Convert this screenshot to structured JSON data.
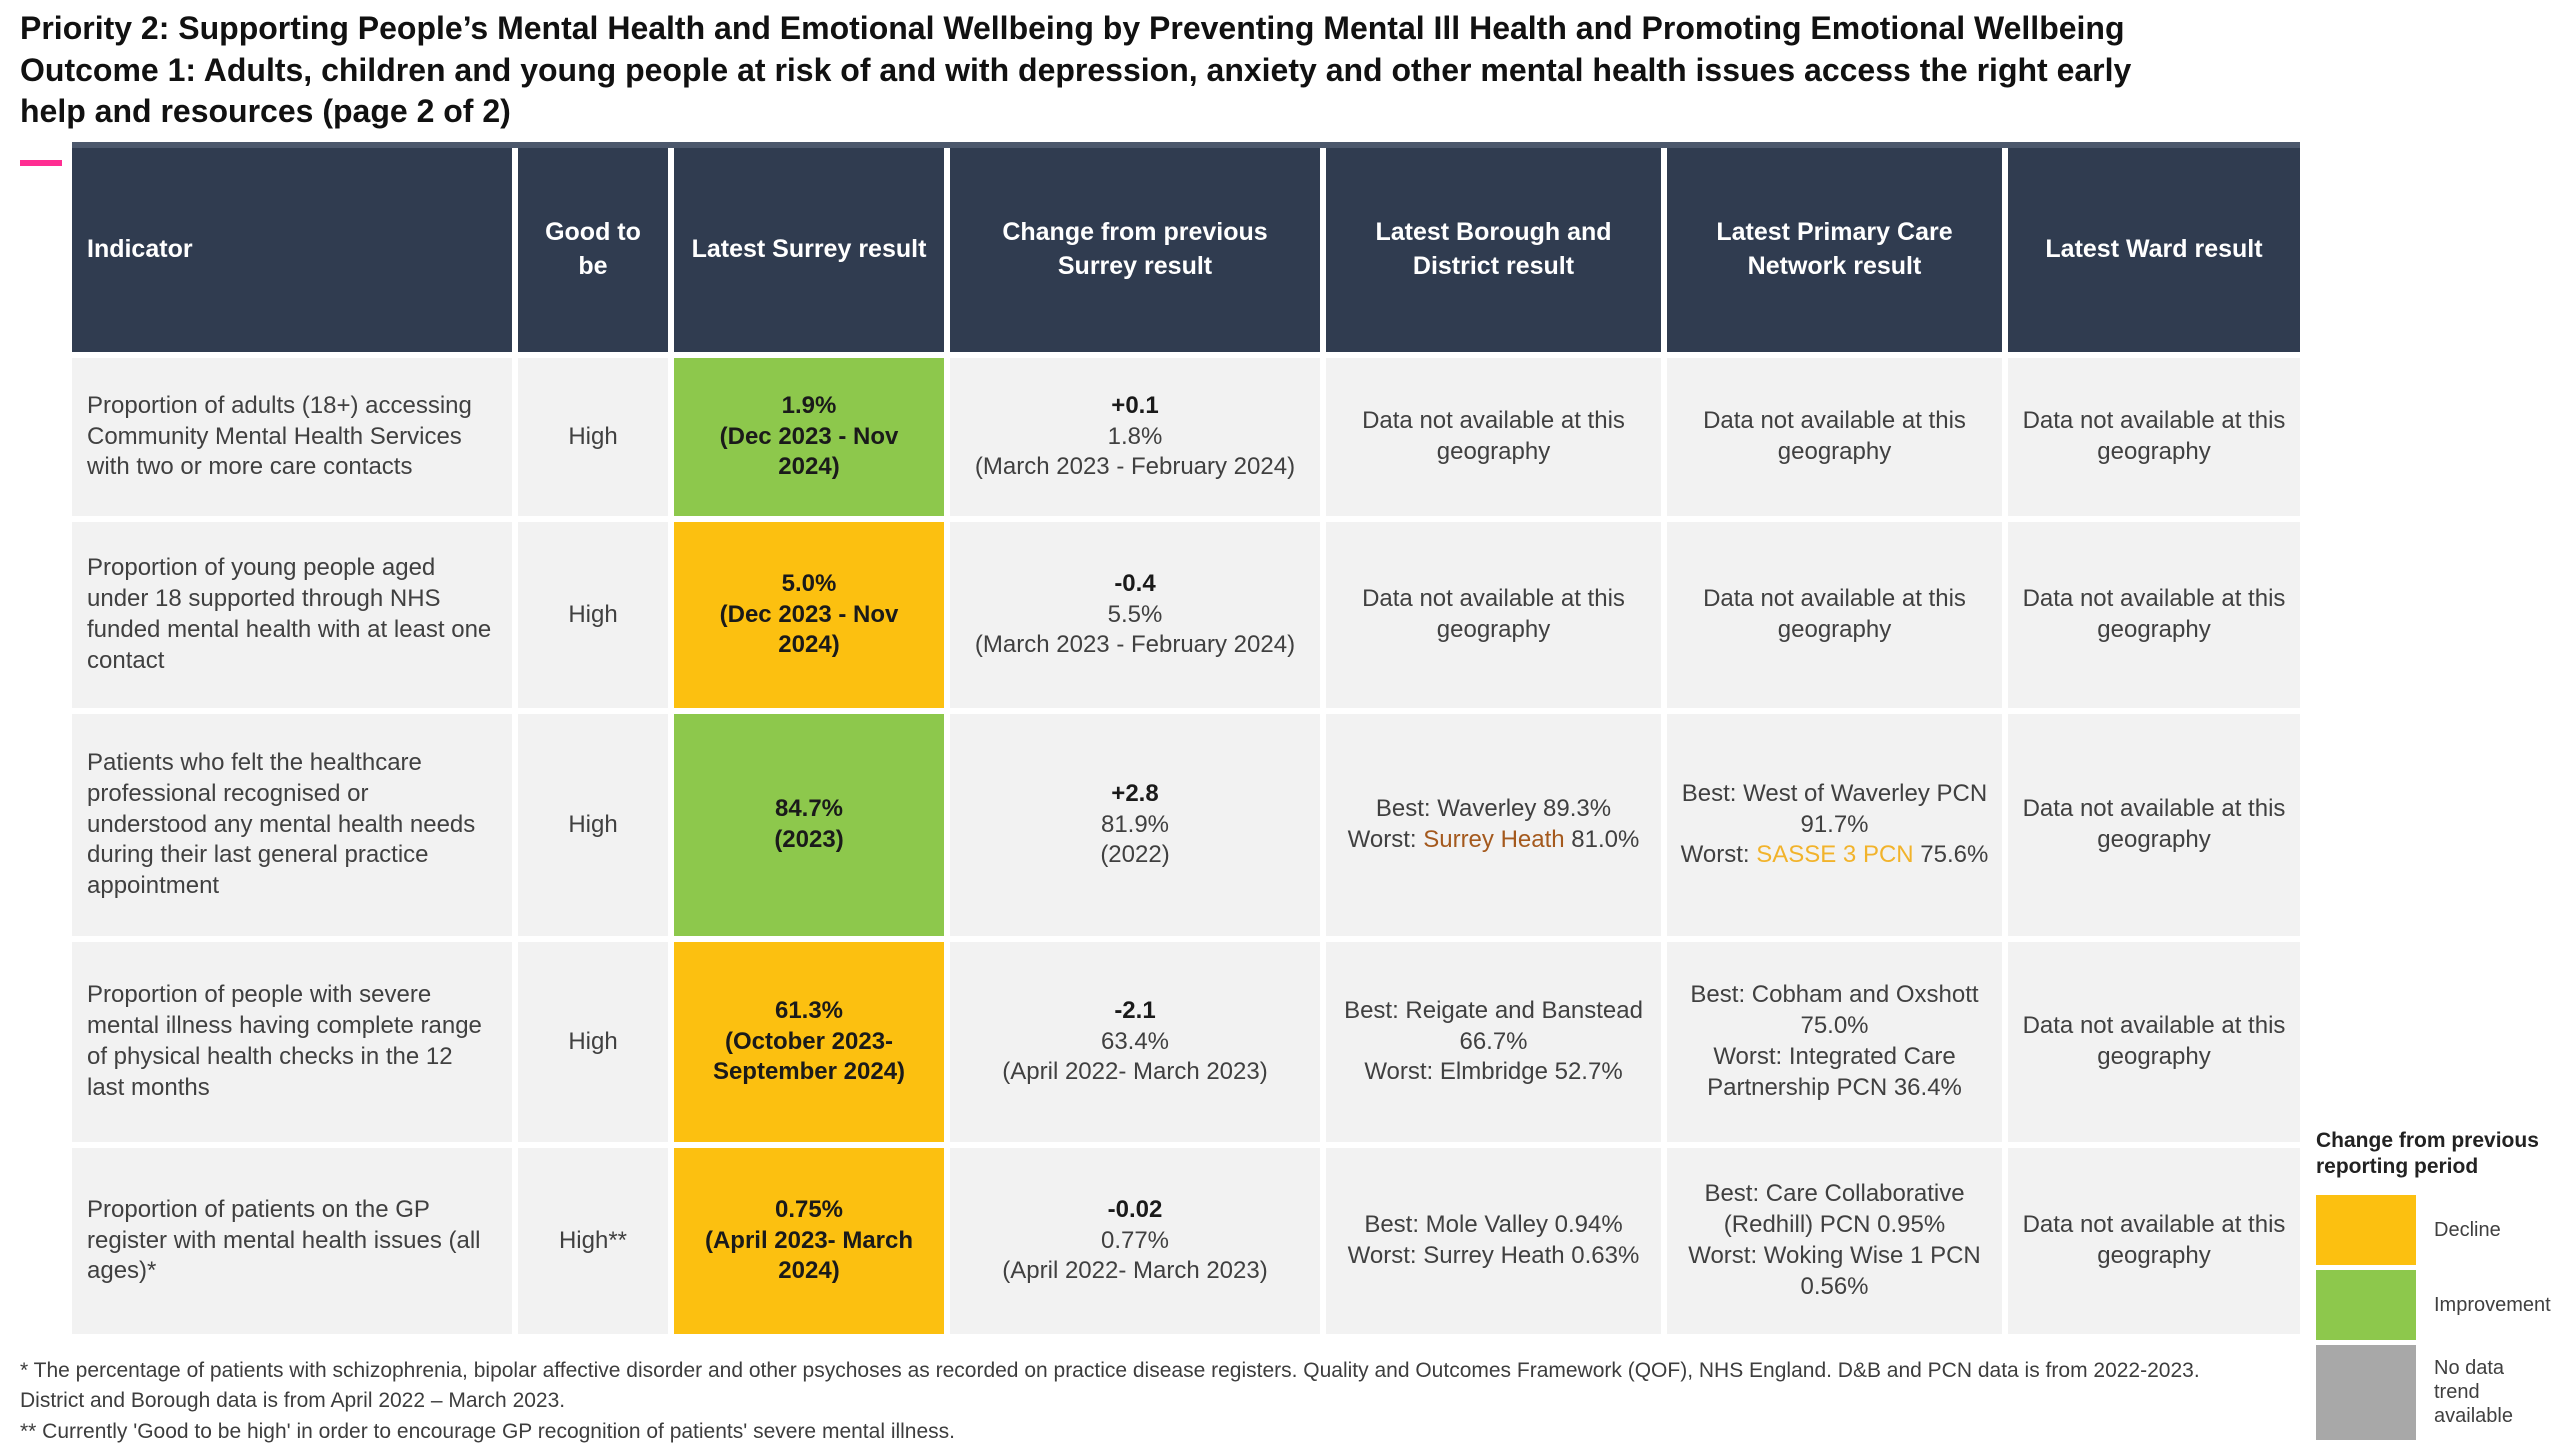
{
  "page": {
    "title_lines": [
      "Priority 2: Supporting People’s Mental Health and Emotional Wellbeing by Preventing Mental Ill Health and Promoting Emotional Wellbeing",
      "Outcome 1: Adults, children and young people at risk of and with depression, anxiety and other mental health issues access the right early",
      "help and resources (page 2 of 2)"
    ]
  },
  "colors": {
    "header_navy": "#303c50",
    "header_stripe": "#4c586c",
    "cell_bg": "#f2f2f2",
    "improvement": "#8dc84c",
    "decline": "#fcc010",
    "no_data": "#a8a8a8",
    "accent_pink": "#ff2e92",
    "worst_borough_highlight": "#a4591d",
    "worst_pcn_highlight": "#f2b32b"
  },
  "table": {
    "headers": [
      "Indicator",
      "Good to be",
      "Latest Surrey result",
      "Change from previous Surrey result",
      "Latest Borough and District result",
      "Latest Primary Care Network result",
      "Latest Ward result"
    ],
    "na_text": "Data not available at this geography",
    "rows": [
      {
        "indicator": "Proportion of adults (18+)  accessing Community Mental Health Services with two or more care contacts",
        "good_to_be": "High",
        "surrey": {
          "value": "1.9%",
          "period": "(Dec 2023 - Nov 2024)",
          "trend": "improvement"
        },
        "change": {
          "delta": "+0.1",
          "previous": "1.8%",
          "period": "(March 2023 - February 2024)"
        }
      },
      {
        "indicator": "Proportion of young people aged under 18 supported through NHS funded mental health with at least one contact",
        "good_to_be": "High",
        "surrey": {
          "value": "5.0%",
          "period": "(Dec 2023 - Nov 2024)",
          "trend": "decline"
        },
        "change": {
          "delta": "-0.4",
          "previous": "5.5%",
          "period": "(March 2023 - February 2024)"
        }
      },
      {
        "indicator": "Patients who felt the healthcare professional recognised or understood any mental health needs during their last general practice appointment",
        "good_to_be": "High",
        "surrey": {
          "value": "84.7%",
          "period": "(2023)",
          "trend": "improvement"
        },
        "change": {
          "delta": "+2.8",
          "previous": "81.9%",
          "period": "(2022)"
        },
        "borough": {
          "best": "Best: Waverley 89.3%",
          "worst_prefix": "Worst:",
          "worst_name": "Surrey Heath",
          "worst_suffix": "81.0%",
          "worst_color": "#a4591d"
        },
        "pcn": {
          "best": "Best: West of Waverley PCN 91.7%",
          "worst_prefix": "Worst:",
          "worst_name": "SASSE 3 PCN",
          "worst_suffix": "75.6%",
          "worst_color": "#f2b32b"
        }
      },
      {
        "indicator": "Proportion of people with severe mental illness having complete range of physical health checks in the 12 last months",
        "good_to_be": "High",
        "surrey": {
          "value": "61.3%",
          "period": "(October 2023- September 2024)",
          "trend": "decline"
        },
        "change": {
          "delta": "-2.1",
          "previous": "63.4%",
          "period": "(April 2022- March 2023)"
        },
        "borough": {
          "best": "Best: Reigate and Banstead 66.7%",
          "worst": "Worst: Elmbridge 52.7%"
        },
        "pcn": {
          "best": "Best: Cobham and Oxshott 75.0%",
          "worst": "Worst: Integrated Care Partnership PCN 36.4%"
        }
      },
      {
        "indicator": "Proportion of patients on the GP register with mental health issues (all ages)*",
        "good_to_be": "High**",
        "surrey": {
          "value": "0.75%",
          "period": "(April 2023- March 2024)",
          "trend": "decline"
        },
        "change": {
          "delta": "-0.02",
          "previous": "0.77%",
          "period": "(April 2022- March 2023)"
        },
        "borough": {
          "best": "Best: Mole Valley 0.94%",
          "worst": "Worst: Surrey Heath 0.63%"
        },
        "pcn": {
          "best": "Best: Care Collaborative (Redhill) PCN 0.95%",
          "worst": "Worst: Woking Wise 1 PCN 0.56%"
        }
      }
    ]
  },
  "footnotes": {
    "lines": [
      "* The percentage of patients with schizophrenia, bipolar affective disorder and other psychoses as recorded on practice disease registers. Quality and Outcomes Framework (QOF), NHS England. D&B and PCN data is from 2022-2023.",
      "District and Borough data is from April 2022 – March 2023.",
      "** Currently 'Good to be high' in order to encourage GP recognition of patients' severe mental illness."
    ]
  },
  "legend": {
    "title": "Change from previous reporting period",
    "items": [
      {
        "label": "Decline",
        "color": "#fcc010"
      },
      {
        "label": "Improvement",
        "color": "#8dc84c"
      },
      {
        "label": "No data trend available",
        "color": "#a8a8a8"
      }
    ]
  }
}
